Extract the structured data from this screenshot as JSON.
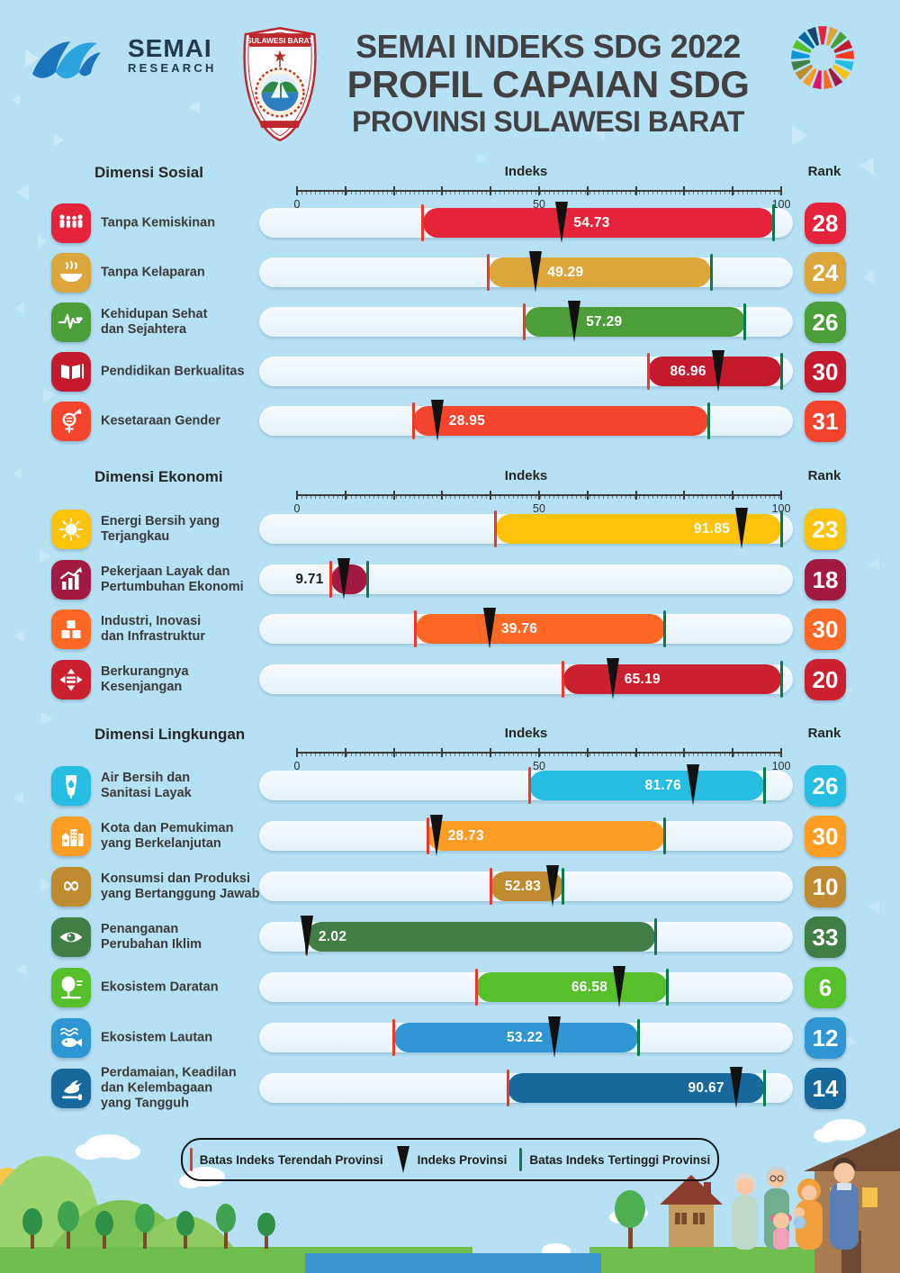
{
  "header": {
    "logo_title": "SEMAI",
    "logo_subtitle": "RESEARCH",
    "crest_banner": "SULAWESI BARAT",
    "title_lines": [
      "SEMAI INDEKS SDG 2022",
      "PROFIL CAPAIAN SDG",
      "PROVINSI SULAWESI BARAT"
    ],
    "sdg_wheel_colors": [
      "#E5243B",
      "#DDA63A",
      "#4C9F38",
      "#C5192D",
      "#FF3A21",
      "#26BDE2",
      "#FCC30B",
      "#A21942",
      "#FD6925",
      "#DD1367",
      "#FD9D24",
      "#BF8B2E",
      "#3F7E44",
      "#0A97D9",
      "#56C02B",
      "#00689D",
      "#19486A"
    ]
  },
  "axis": {
    "label": "Indeks",
    "rank_label": "Rank",
    "tick_labels": [
      "0",
      "50",
      "100"
    ],
    "range": [
      0,
      100
    ]
  },
  "legend": {
    "items": [
      {
        "marker": "red-line",
        "label": "Batas Indeks Terendah Provinsi"
      },
      {
        "marker": "black-wedge",
        "label": "Indeks Provinsi"
      },
      {
        "marker": "green-line",
        "label": "Batas Indeks Tertinggi Provinsi"
      }
    ]
  },
  "colors": {
    "background": "#B6E0F4",
    "track": "#EDF7FC",
    "min_boundary_line": "#F0362B",
    "max_boundary_line": "#0B7A4B",
    "province_marker": "#111111"
  },
  "chart_data": {
    "type": "bar",
    "orientation": "horizontal-range",
    "xlabel": "Indeks",
    "xlim": [
      0,
      100
    ],
    "x_ticks": [
      0,
      50,
      100
    ],
    "sections": [
      {
        "title": "Dimensi Sosial",
        "rows": [
          {
            "label": "Tanpa Kemiskinan",
            "icon": "people",
            "color": "#E5243B",
            "value": 54.73,
            "value_label": "54.73",
            "min": 26,
            "max": 98.5,
            "rank": 28,
            "label_side": "right"
          },
          {
            "label": "Tanpa Kelaparan",
            "icon": "bowl",
            "color": "#DDA63A",
            "value": 49.29,
            "value_label": "49.29",
            "min": 39.5,
            "max": 85.5,
            "rank": 24,
            "label_side": "right"
          },
          {
            "label": "Kehidupan Sehat\ndan Sejahtera",
            "icon": "heartbeat",
            "color": "#4C9F38",
            "value": 57.29,
            "value_label": "57.29",
            "min": 47,
            "max": 92.5,
            "rank": 26,
            "label_side": "right"
          },
          {
            "label": "Pendidikan Berkualitas",
            "icon": "book",
            "color": "#C5192D",
            "value": 86.96,
            "value_label": "86.96",
            "min": 72.5,
            "max": 100,
            "rank": 30,
            "label_side": "left"
          },
          {
            "label": "Kesetaraan Gender",
            "icon": "gender",
            "color": "#F4442B",
            "value": 28.95,
            "value_label": "28.95",
            "min": 24,
            "max": 85,
            "rank": 31,
            "label_side": "right"
          }
        ]
      },
      {
        "title": "Dimensi Ekonomi",
        "rows": [
          {
            "label": "Energi Bersih yang\nTerjangkau",
            "icon": "sun",
            "color": "#FCC30B",
            "value": 91.85,
            "value_label": "91.85",
            "min": 41,
            "max": 100,
            "rank": 23,
            "label_side": "left"
          },
          {
            "label": "Pekerjaan Layak dan\nPertumbuhan Ekonomi",
            "icon": "growth-chart",
            "color": "#A21942",
            "value": 9.71,
            "value_label": "9.71",
            "min": 7,
            "max": 14.5,
            "rank": 18,
            "label_side": "outside-left"
          },
          {
            "label": "Industri, Inovasi\ndan Infrastruktur",
            "icon": "cubes",
            "color": "#FD6925",
            "value": 39.76,
            "value_label": "39.76",
            "min": 24.5,
            "max": 76,
            "rank": 30,
            "label_side": "right"
          },
          {
            "label": "Berkurangnya\nKesenjangan",
            "icon": "equality",
            "color": "#CB2030",
            "value": 65.19,
            "value_label": "65.19",
            "min": 55,
            "max": 100,
            "rank": 20,
            "label_side": "right"
          }
        ]
      },
      {
        "title": "Dimensi Lingkungan",
        "rows": [
          {
            "label": "Air Bersih dan\nSanitasi Layak",
            "icon": "water",
            "color": "#26BDE2",
            "value": 81.76,
            "value_label": "81.76",
            "min": 48,
            "max": 96.5,
            "rank": 26,
            "label_side": "left"
          },
          {
            "label": "Kota dan Pemukiman\nyang Berkelanjutan",
            "icon": "city",
            "color": "#FD9D24",
            "value": 28.73,
            "value_label": "28.73",
            "min": 27,
            "max": 76,
            "rank": 30,
            "label_side": "right"
          },
          {
            "label": "Konsumsi dan Produksi\nyang Bertanggung Jawab",
            "icon": "infinity",
            "color": "#BF8B2E",
            "value": 52.83,
            "value_label": "52.83",
            "min": 40,
            "max": 55,
            "rank": 10,
            "label_side": "left"
          },
          {
            "label": "Penanganan\nPerubahan Iklim",
            "icon": "eye",
            "color": "#3F7E44",
            "value": 2.02,
            "value_label": "2.02",
            "min": 2,
            "max": 74,
            "rank": 33,
            "label_side": "right"
          },
          {
            "label": "Ekosistem Daratan",
            "icon": "tree",
            "color": "#56C02B",
            "value": 66.58,
            "value_label": "66.58",
            "min": 37,
            "max": 76.5,
            "rank": 6,
            "label_side": "left"
          },
          {
            "label": "Ekosistem Lautan",
            "icon": "fish",
            "color": "#2D96D3",
            "value": 53.22,
            "value_label": "53.22",
            "min": 20,
            "max": 70.5,
            "rank": 12,
            "label_side": "left"
          },
          {
            "label": "Perdamaian, Keadilan\ndan Kelembagaan\nyang Tangguh",
            "icon": "dove",
            "color": "#16689D",
            "value": 90.67,
            "value_label": "90.67",
            "min": 43.5,
            "max": 96.5,
            "rank": 14,
            "label_side": "left"
          }
        ]
      }
    ]
  }
}
